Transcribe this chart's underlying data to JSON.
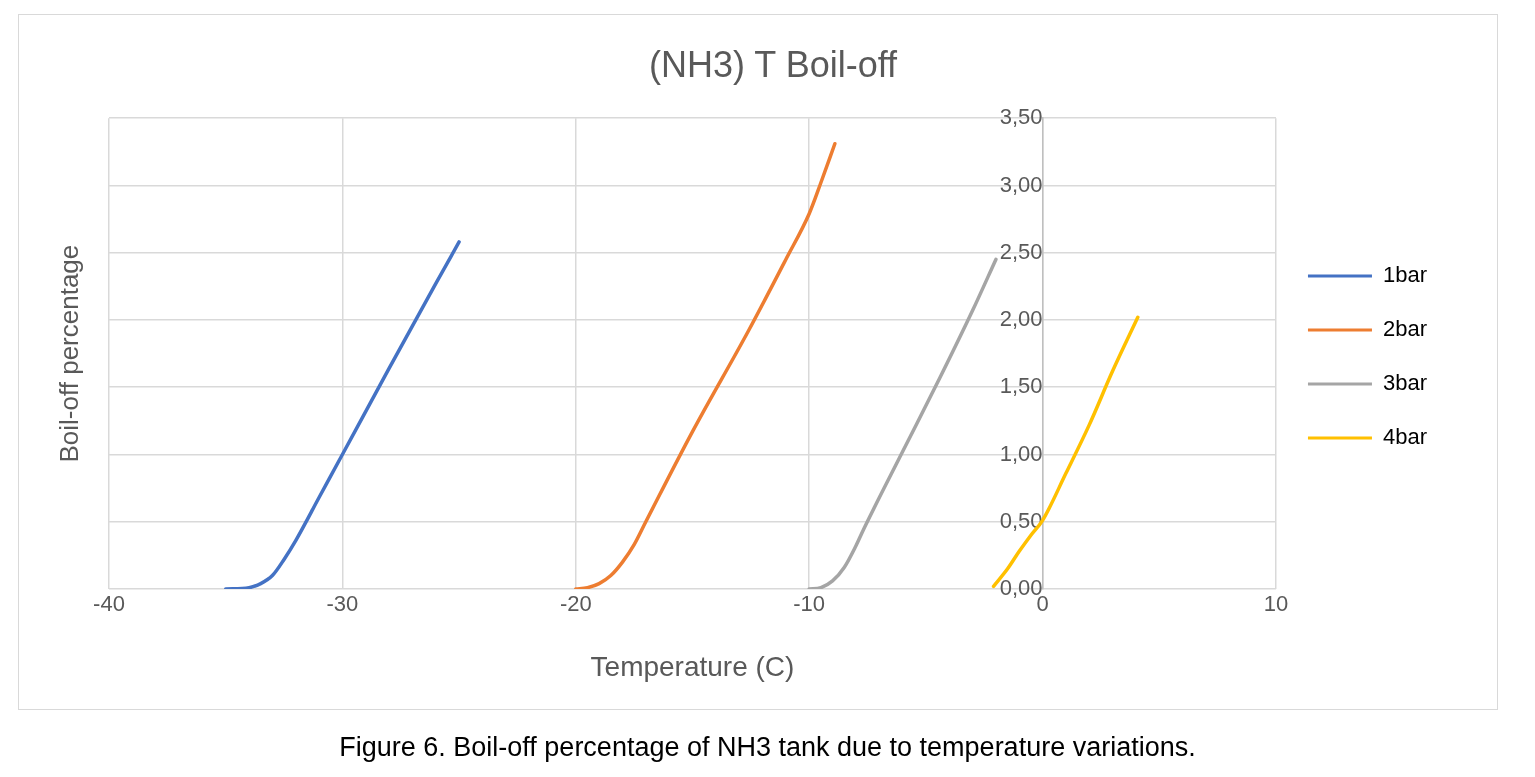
{
  "chart_data": {
    "type": "line",
    "title": "(NH3) T Boil-off",
    "xlabel": "Temperature (C)",
    "ylabel": "Boil-off percentage",
    "annotations": [
      "Figure 6. Boil-off percentage of NH3 tank due to temperature variations."
    ],
    "xlim": [
      -40,
      10
    ],
    "xticks": [
      -40,
      -30,
      -20,
      -10,
      0,
      10
    ],
    "ylim": [
      0,
      3.5
    ],
    "yticks": [
      {
        "value": 0,
        "label": "0,00"
      },
      {
        "value": 0.5,
        "label": "0,50"
      },
      {
        "value": 1,
        "label": "1,00"
      },
      {
        "value": 1.5,
        "label": "1,50"
      },
      {
        "value": 2,
        "label": "2,00"
      },
      {
        "value": 2.5,
        "label": "2,50"
      },
      {
        "value": 3,
        "label": "3,00"
      },
      {
        "value": 3.5,
        "label": "3,50"
      }
    ],
    "grid": true,
    "legend": "right",
    "marker": "none",
    "line_style": "solid",
    "series": [
      {
        "name": "1bar",
        "color": "#4472c4",
        "x": [
          -35,
          -34,
          -33.5,
          -33,
          -32.5,
          -32,
          -31,
          -30,
          -28,
          -26,
          -25
        ],
        "values": [
          0,
          0.01,
          0.04,
          0.1,
          0.22,
          0.36,
          0.68,
          1.0,
          1.64,
          2.27,
          2.58
        ]
      },
      {
        "name": "2bar",
        "color": "#ed7d31",
        "x": [
          -20,
          -19.5,
          -19,
          -18.5,
          -18,
          -17.5,
          -17,
          -15,
          -12.6,
          -11,
          -10,
          -9.5,
          -8.9
        ],
        "values": [
          0,
          0.01,
          0.04,
          0.1,
          0.2,
          0.33,
          0.5,
          1.17,
          1.92,
          2.45,
          2.79,
          3.02,
          3.31
        ]
      },
      {
        "name": "3bar",
        "color": "#a5a5a5",
        "x": [
          -10,
          -9.5,
          -9,
          -8.5,
          -8,
          -7.65,
          -6,
          -4.4,
          -3,
          -2
        ],
        "values": [
          0,
          0.01,
          0.06,
          0.16,
          0.32,
          0.45,
          1.02,
          1.57,
          2.07,
          2.45
        ]
      },
      {
        "name": "4bar",
        "color": "#ffc000",
        "x": [
          -2.1,
          -1.5,
          -1,
          -0.5,
          0,
          1,
          2,
          3,
          4.08
        ],
        "values": [
          0.02,
          0.15,
          0.28,
          0.4,
          0.51,
          0.86,
          1.22,
          1.62,
          2.02
        ]
      }
    ]
  }
}
